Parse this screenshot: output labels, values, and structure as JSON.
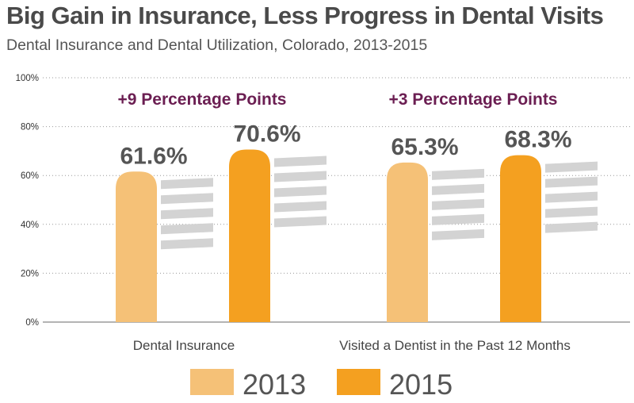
{
  "chart_data": {
    "type": "bar",
    "title": "Big Gain in Insurance, Less Progress in Dental Visits",
    "subtitle": "Dental Insurance and Dental Utilization, Colorado, 2013-2015",
    "categories": [
      "Dental Insurance",
      "Visited a Dentist in the Past 12 Months"
    ],
    "series": [
      {
        "name": "2013",
        "values": [
          61.6,
          65.3
        ],
        "labels": [
          "61.6%",
          "65.3%"
        ],
        "color": "#f5c177"
      },
      {
        "name": "2015",
        "values": [
          70.6,
          68.3
        ],
        "labels": [
          "70.6%",
          "68.3%"
        ],
        "color": "#f4a020"
      }
    ],
    "annotations": [
      "+9 Percentage Points",
      "+3 Percentage Points"
    ],
    "yticks": [
      "100%",
      "80%",
      "60%",
      "40%",
      "20%",
      "0%"
    ],
    "ylim": [
      0,
      100
    ],
    "grid": "dotted",
    "legend_position": "bottom",
    "colors": {
      "toothbrush_bristle": "#d3d3d3",
      "grid": "#999999",
      "axis": "#888888"
    }
  }
}
